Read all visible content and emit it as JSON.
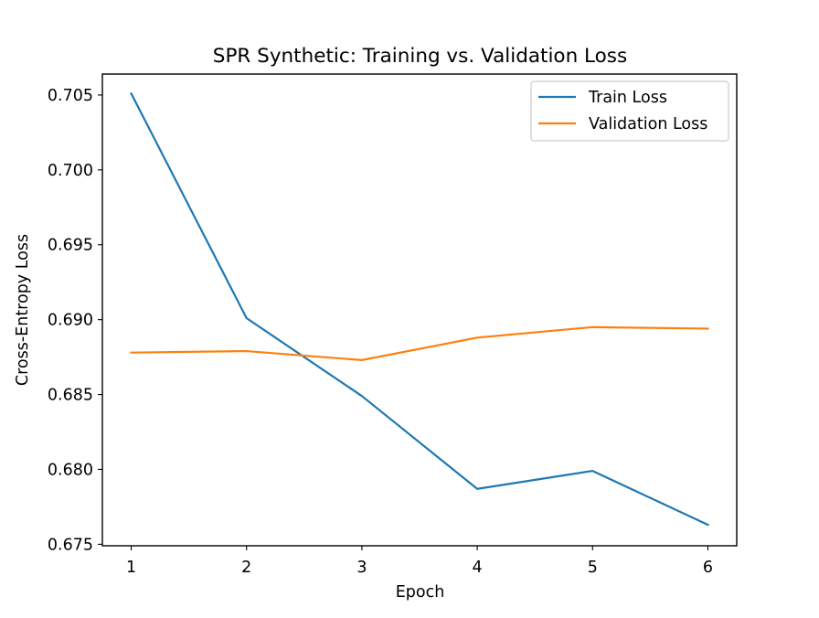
{
  "chart_data": {
    "type": "line",
    "title": "SPR Synthetic: Training vs. Validation Loss",
    "xlabel": "Epoch",
    "ylabel": "Cross-Entropy Loss",
    "x": [
      1,
      2,
      3,
      4,
      5,
      6
    ],
    "xticks": [
      "1",
      "2",
      "3",
      "4",
      "5",
      "6"
    ],
    "yticks": [
      "0.675",
      "0.680",
      "0.685",
      "0.690",
      "0.695",
      "0.700",
      "0.705"
    ],
    "ytick_values": [
      0.675,
      0.68,
      0.685,
      0.69,
      0.695,
      0.7,
      0.705
    ],
    "xlim": [
      0.75,
      6.25
    ],
    "ylim": [
      0.6749,
      0.7064
    ],
    "grid": false,
    "legend_position": "top-right",
    "series": [
      {
        "name": "Train Loss",
        "color": "#1f77b4",
        "values": [
          0.7051,
          0.6901,
          0.6849,
          0.6787,
          0.6799,
          0.6763
        ]
      },
      {
        "name": "Validation Loss",
        "color": "#ff7f0e",
        "values": [
          0.6878,
          0.6879,
          0.6873,
          0.6888,
          0.6895,
          0.6894
        ]
      }
    ]
  }
}
